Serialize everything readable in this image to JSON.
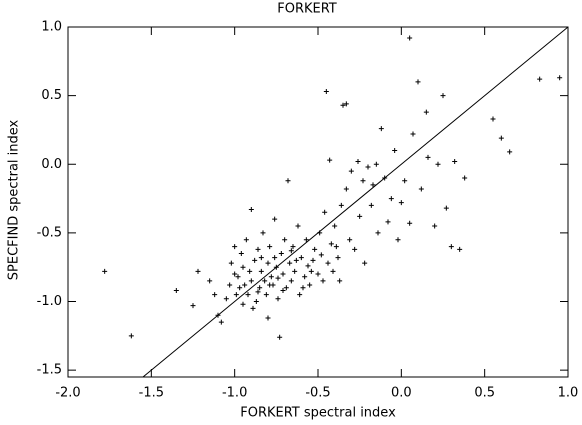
{
  "chart_data": {
    "type": "scatter",
    "title": "FORKERT",
    "x_label": "FORKERT spectral index",
    "y_label": "SPECFIND spectral index",
    "xlim": [
      -2.0,
      1.0
    ],
    "ylim": [
      -1.55,
      1.0
    ],
    "xticks": [
      {
        "value": -2,
        "label": "-2.0"
      },
      -1.5,
      {
        "value": -1,
        "label": "-1.0"
      },
      -0.5,
      {
        "value": 0,
        "label": "0.0"
      },
      0.5,
      {
        "value": 1,
        "label": "1.0"
      }
    ],
    "yticks": [
      {
        "value": -1.5,
        "label": "-1.5"
      },
      {
        "value": -1,
        "label": "-1.0"
      },
      -0.5,
      {
        "value": 0,
        "label": "0.0"
      },
      0.5,
      {
        "value": 1,
        "label": "1.0"
      }
    ],
    "diagonal": true,
    "color": "#000000",
    "x": [
      -1.78,
      -1.62,
      -1.35,
      -1.22,
      -1.25,
      -1.12,
      -1.1,
      -1.08,
      -1.05,
      -1.03,
      -1.02,
      -1.0,
      -0.98,
      -0.97,
      -0.95,
      -0.95,
      -0.93,
      -0.92,
      -0.9,
      -0.9,
      -0.88,
      -0.87,
      -0.86,
      -0.85,
      -0.84,
      -0.83,
      -0.82,
      -0.81,
      -0.8,
      -0.8,
      -0.79,
      -0.78,
      -0.77,
      -0.76,
      -0.75,
      -0.74,
      -0.73,
      -0.72,
      -0.71,
      -0.7,
      -0.69,
      -0.68,
      -0.67,
      -0.66,
      -0.65,
      -0.64,
      -0.62,
      -0.61,
      -0.6,
      -0.58,
      -0.57,
      -0.56,
      -0.55,
      -0.53,
      -0.52,
      -0.5,
      -0.49,
      -0.48,
      -0.46,
      -0.45,
      -0.44,
      -0.43,
      -0.42,
      -0.4,
      -0.38,
      -0.36,
      -0.35,
      -0.33,
      -0.33,
      -0.31,
      -0.3,
      -0.28,
      -0.26,
      -0.25,
      -0.23,
      -0.22,
      -0.2,
      -0.18,
      -0.17,
      -0.15,
      -0.14,
      -0.12,
      -0.1,
      -0.08,
      -0.06,
      -0.04,
      -0.02,
      0.0,
      0.02,
      0.05,
      0.05,
      0.07,
      0.1,
      0.12,
      0.15,
      0.16,
      0.2,
      0.22,
      0.25,
      0.27,
      0.3,
      0.32,
      0.35,
      0.38,
      0.55,
      0.6,
      0.65,
      0.83,
      0.95,
      -1.15,
      -0.96,
      -0.89,
      -0.91,
      -0.86,
      -0.79,
      -0.76,
      -0.71,
      -0.63,
      -0.59,
      -0.54,
      -0.47,
      -0.41,
      -0.39,
      -0.37,
      -1.0,
      -0.99,
      -0.94,
      -0.84,
      -0.74,
      -0.66
    ],
    "values": [
      -0.78,
      -1.25,
      -0.92,
      -0.78,
      -1.03,
      -0.95,
      -1.1,
      -1.15,
      -0.98,
      -0.88,
      -0.72,
      -0.6,
      -0.82,
      -0.9,
      -1.02,
      -0.75,
      -0.55,
      -0.95,
      -0.33,
      -0.85,
      -0.7,
      -1.0,
      -0.62,
      -0.9,
      -0.78,
      -0.5,
      -0.85,
      -0.95,
      -0.72,
      -1.12,
      -0.6,
      -0.82,
      -0.88,
      -0.4,
      -0.75,
      -0.98,
      -1.26,
      -0.65,
      -0.8,
      -0.55,
      -0.9,
      -0.12,
      -0.72,
      -0.85,
      -0.6,
      -0.78,
      -0.45,
      -0.95,
      -0.68,
      -0.82,
      -0.55,
      -0.74,
      -0.88,
      -0.7,
      -0.62,
      -0.8,
      -0.5,
      -0.66,
      -0.35,
      0.53,
      -0.72,
      0.03,
      -0.58,
      -0.45,
      -0.68,
      -0.3,
      0.43,
      0.44,
      -0.18,
      -0.55,
      -0.05,
      -0.62,
      0.02,
      -0.38,
      -0.12,
      -0.72,
      -0.02,
      -0.3,
      -0.15,
      0.0,
      -0.5,
      0.26,
      -0.1,
      -0.42,
      -0.25,
      0.1,
      -0.55,
      -0.28,
      -0.12,
      0.92,
      -0.43,
      0.22,
      0.6,
      -0.18,
      0.38,
      0.05,
      -0.45,
      0.0,
      0.5,
      -0.32,
      -0.6,
      0.02,
      -0.62,
      -0.1,
      0.33,
      0.19,
      0.09,
      0.62,
      0.63,
      -0.85,
      -0.65,
      -1.05,
      -0.78,
      -0.93,
      -0.88,
      -0.68,
      -0.92,
      -0.7,
      -0.9,
      -0.78,
      -0.85,
      -0.78,
      -0.6,
      -0.85,
      -0.8,
      -0.95,
      -0.88,
      -0.68,
      -0.83,
      -0.63
    ]
  }
}
